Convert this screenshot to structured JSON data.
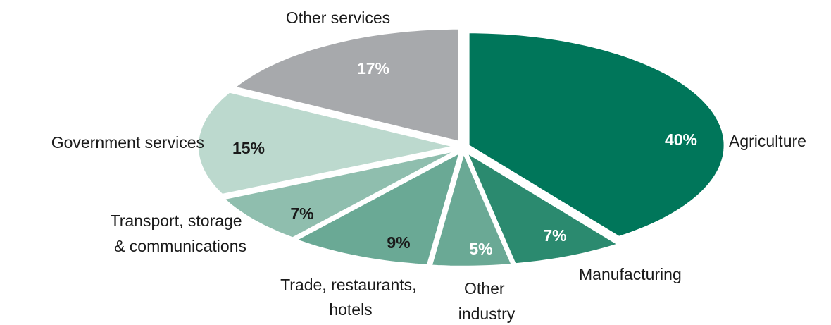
{
  "chart_data": {
    "type": "pie",
    "style": "exploded",
    "slices": [
      {
        "label": "Agriculture",
        "value": 40,
        "value_label": "40%",
        "color": "#00765a",
        "value_text_color": "#ffffff"
      },
      {
        "label": "Manufacturing",
        "value": 7,
        "value_label": "7%",
        "color": "#2b8a6f",
        "value_text_color": "#ffffff"
      },
      {
        "label_lines": [
          "Other",
          "industry"
        ],
        "value": 5,
        "value_label": "5%",
        "color": "#6aa995",
        "value_text_color": "#ffffff"
      },
      {
        "label_lines": [
          "Trade, restaurants,",
          "hotels"
        ],
        "value": 9,
        "value_label": "9%",
        "color": "#6aa995",
        "value_text_color": "#1a1a1a"
      },
      {
        "label_lines": [
          "Transport, storage",
          "& communications"
        ],
        "value": 7,
        "value_label": "7%",
        "color": "#8fbeae",
        "value_text_color": "#1a1a1a"
      },
      {
        "label": "Government services",
        "value": 15,
        "value_label": "15%",
        "color": "#bcd9ce",
        "value_text_color": "#1a1a1a"
      },
      {
        "label": "Other services",
        "value": 17,
        "value_label": "17%",
        "color": "#a7a9ac",
        "value_text_color": "#ffffff"
      }
    ]
  }
}
